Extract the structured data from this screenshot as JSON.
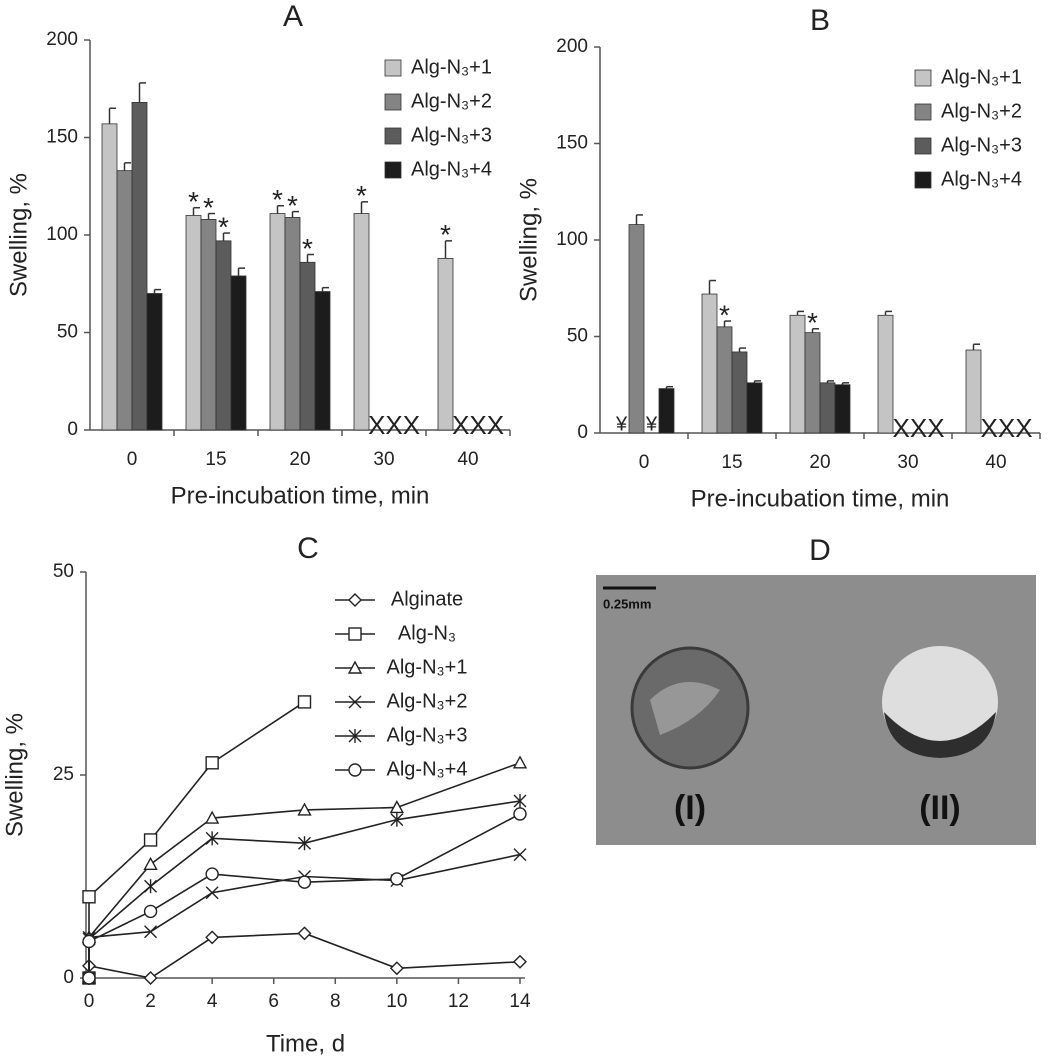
{
  "chart_data": [
    {
      "type": "bar",
      "title": "A",
      "xlabel": "Pre-incubation time, min",
      "ylabel": "Swelling, %",
      "categories": [
        "0",
        "15",
        "20",
        "30",
        "40"
      ],
      "ylim": [
        0,
        200
      ],
      "yticks": [
        0,
        50,
        100,
        150,
        200
      ],
      "legend": "upper right",
      "category_notes": [
        null,
        null,
        null,
        "XXX",
        "XXX"
      ],
      "series": [
        {
          "name": "Alg-N₃+1",
          "color": "#c4c4c4",
          "values": [
            157,
            110,
            111,
            111,
            88
          ],
          "errors": [
            8,
            4,
            4,
            6,
            9
          ],
          "markers": [
            null,
            "*",
            "*",
            "*",
            "*"
          ]
        },
        {
          "name": "Alg-N₃+2",
          "color": "#848484",
          "values": [
            133,
            108,
            109,
            null,
            null
          ],
          "errors": [
            4,
            3,
            3,
            null,
            null
          ],
          "markers": [
            null,
            "*",
            "*",
            null,
            null
          ]
        },
        {
          "name": "Alg-N₃+3",
          "color": "#5c5c5c",
          "values": [
            168,
            97,
            86,
            null,
            null
          ],
          "errors": [
            10,
            4,
            4,
            null,
            null
          ],
          "markers": [
            null,
            "*",
            "*",
            null,
            null
          ]
        },
        {
          "name": "Alg-N₃+4",
          "color": "#1c1c1c",
          "values": [
            70,
            79,
            71,
            null,
            null
          ],
          "errors": [
            2,
            4,
            2,
            null,
            null
          ]
        }
      ]
    },
    {
      "type": "bar",
      "title": "B",
      "xlabel": "Pre-incubation time, min",
      "ylabel": "Swelling, %",
      "categories": [
        "0",
        "15",
        "20",
        "30",
        "40"
      ],
      "ylim": [
        0,
        200
      ],
      "yticks": [
        0,
        50,
        100,
        150,
        200
      ],
      "legend": "upper right",
      "category_notes": [
        null,
        null,
        null,
        "XXX",
        "XXX"
      ],
      "series": [
        {
          "name": "Alg-N₃+1",
          "color": "#c4c4c4",
          "values": [
            null,
            72,
            61,
            61,
            43
          ],
          "errors": [
            null,
            7,
            2,
            2,
            3
          ],
          "missing_labels": [
            "¥",
            null,
            null,
            null,
            null
          ]
        },
        {
          "name": "Alg-N₃+2",
          "color": "#848484",
          "values": [
            108,
            55,
            52,
            null,
            null
          ],
          "errors": [
            5,
            3,
            2,
            null,
            null
          ],
          "markers": [
            null,
            "*",
            "*",
            null,
            null
          ]
        },
        {
          "name": "Alg-N₃+3",
          "color": "#5c5c5c",
          "values": [
            null,
            42,
            26,
            null,
            null
          ],
          "errors": [
            null,
            2,
            1,
            null,
            null
          ],
          "missing_labels": [
            "¥",
            null,
            null,
            null,
            null
          ]
        },
        {
          "name": "Alg-N₃+4",
          "color": "#1c1c1c",
          "values": [
            23,
            26,
            25,
            null,
            null
          ],
          "errors": [
            1,
            1,
            1,
            null,
            null
          ]
        }
      ]
    },
    {
      "type": "line",
      "title": "C",
      "xlabel": "Time, d",
      "ylabel": "Swelling, %",
      "xlim": [
        0,
        14
      ],
      "xticks": [
        0,
        2,
        4,
        6,
        8,
        10,
        12,
        14
      ],
      "ylim": [
        0,
        50
      ],
      "yticks": [
        0,
        25,
        50
      ],
      "legend": "upper right",
      "series": [
        {
          "name": "Alginate",
          "color": "#222222",
          "marker": "diamond",
          "x": [
            0,
            0,
            2,
            4,
            7,
            10,
            14
          ],
          "values": [
            0,
            1.5,
            0,
            5,
            5.5,
            1.2,
            2
          ]
        },
        {
          "name": "Alg-N₃",
          "color": "#222222",
          "marker": "square",
          "x": [
            0,
            0,
            2,
            4,
            7
          ],
          "values": [
            0,
            10,
            17,
            26.5,
            34
          ]
        },
        {
          "name": "Alg-N₃+1",
          "color": "#222222",
          "marker": "triangle",
          "x": [
            0,
            0,
            2,
            4,
            7,
            10,
            14
          ],
          "values": [
            0,
            5,
            14,
            19.7,
            20.7,
            21,
            26.5
          ]
        },
        {
          "name": "Alg-N₃+2",
          "color": "#222222",
          "marker": "x",
          "x": [
            0,
            0,
            2,
            4,
            7,
            10,
            14
          ],
          "values": [
            0,
            5,
            5.7,
            10.5,
            12.5,
            12,
            15.2
          ]
        },
        {
          "name": "Alg-N₃+3",
          "color": "#222222",
          "marker": "star",
          "x": [
            0,
            0,
            2,
            4,
            7,
            10,
            14
          ],
          "values": [
            0,
            4.8,
            11.3,
            17.2,
            16.6,
            19.5,
            21.8
          ]
        },
        {
          "name": "Alg-N₃+4",
          "color": "#222222",
          "marker": "circle",
          "x": [
            0,
            0,
            2,
            4,
            7,
            10,
            14
          ],
          "values": [
            0,
            4.5,
            8.2,
            12.8,
            11.8,
            12.2,
            20.2
          ]
        }
      ]
    }
  ],
  "image_panel": {
    "title": "D",
    "scale_label": "0.25mm",
    "labels": [
      "(I)",
      "(II)"
    ]
  }
}
